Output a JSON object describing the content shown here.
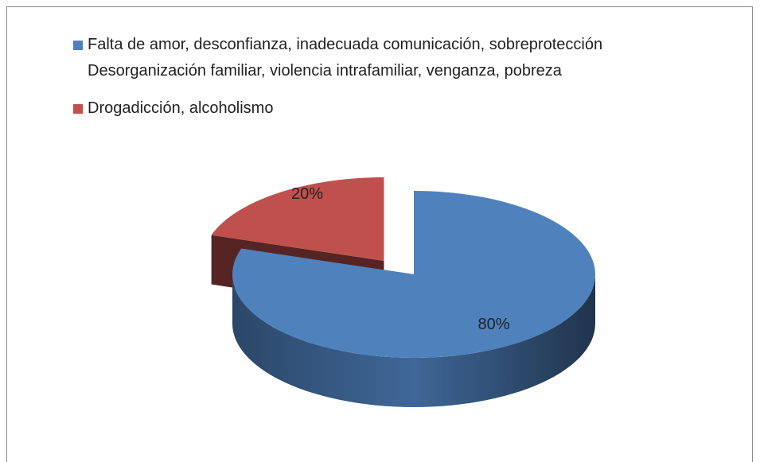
{
  "chart_data": {
    "type": "pie",
    "categories": [
      "Falta de amor, desconfianza, inadecuada comunicación, sobreprotección\nDesorganización familiar, violencia intrafamiliar, venganza, pobreza",
      "Drogadicción, alcoholismo"
    ],
    "values": [
      80,
      20
    ],
    "value_labels": [
      "80%",
      "20%"
    ],
    "colors": [
      "#4f81bd",
      "#c0504d"
    ],
    "legend": "top-left"
  }
}
